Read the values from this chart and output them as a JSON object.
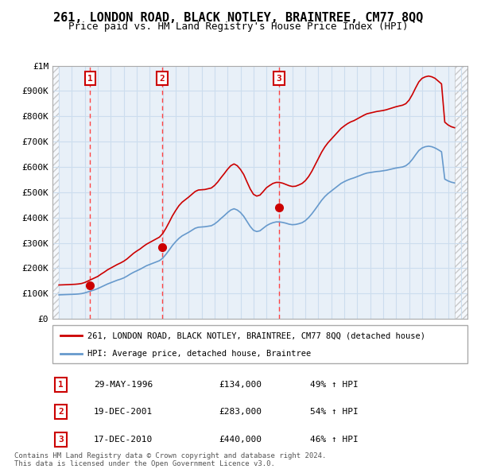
{
  "title": "261, LONDON ROAD, BLACK NOTLEY, BRAINTREE, CM77 8QQ",
  "subtitle": "Price paid vs. HM Land Registry's House Price Index (HPI)",
  "ylim": [
    0,
    1000000
  ],
  "yticks": [
    0,
    100000,
    200000,
    300000,
    400000,
    500000,
    600000,
    700000,
    800000,
    900000,
    1000000
  ],
  "ytick_labels": [
    "£0",
    "£100K",
    "£200K",
    "£300K",
    "£400K",
    "£500K",
    "£600K",
    "£700K",
    "£800K",
    "£900K",
    "£1M"
  ],
  "xlim_left": 1993.5,
  "xlim_right": 2025.5,
  "sales": [
    {
      "date": 1996.41,
      "price": 134000,
      "label": "1"
    },
    {
      "date": 2001.96,
      "price": 283000,
      "label": "2"
    },
    {
      "date": 2010.96,
      "price": 440000,
      "label": "3"
    }
  ],
  "sale_dashed_color": "#FF4444",
  "sale_line_color": "#CC0000",
  "hpi_line_color": "#6699CC",
  "hatch_color": "#BBBBBB",
  "grid_color": "#CCDDEE",
  "background_color": "#E8F0F8",
  "legend_entries": [
    "261, LONDON ROAD, BLACK NOTLEY, BRAINTREE, CM77 8QQ (detached house)",
    "HPI: Average price, detached house, Braintree"
  ],
  "table_rows": [
    {
      "num": "1",
      "date": "29-MAY-1996",
      "price": "£134,000",
      "hpi": "49% ↑ HPI"
    },
    {
      "num": "2",
      "date": "19-DEC-2001",
      "price": "£283,000",
      "hpi": "54% ↑ HPI"
    },
    {
      "num": "3",
      "date": "17-DEC-2010",
      "price": "£440,000",
      "hpi": "46% ↑ HPI"
    }
  ],
  "footer": "Contains HM Land Registry data © Crown copyright and database right 2024.\nThis data is licensed under the Open Government Licence v3.0.",
  "hpi_data_x": [
    1994.0,
    1994.25,
    1994.5,
    1994.75,
    1995.0,
    1995.25,
    1995.5,
    1995.75,
    1996.0,
    1996.25,
    1996.5,
    1996.75,
    1997.0,
    1997.25,
    1997.5,
    1997.75,
    1998.0,
    1998.25,
    1998.5,
    1998.75,
    1999.0,
    1999.25,
    1999.5,
    1999.75,
    2000.0,
    2000.25,
    2000.5,
    2000.75,
    2001.0,
    2001.25,
    2001.5,
    2001.75,
    2002.0,
    2002.25,
    2002.5,
    2002.75,
    2003.0,
    2003.25,
    2003.5,
    2003.75,
    2004.0,
    2004.25,
    2004.5,
    2004.75,
    2005.0,
    2005.25,
    2005.5,
    2005.75,
    2006.0,
    2006.25,
    2006.5,
    2006.75,
    2007.0,
    2007.25,
    2007.5,
    2007.75,
    2008.0,
    2008.25,
    2008.5,
    2008.75,
    2009.0,
    2009.25,
    2009.5,
    2009.75,
    2010.0,
    2010.25,
    2010.5,
    2010.75,
    2011.0,
    2011.25,
    2011.5,
    2011.75,
    2012.0,
    2012.25,
    2012.5,
    2012.75,
    2013.0,
    2013.25,
    2013.5,
    2013.75,
    2014.0,
    2014.25,
    2014.5,
    2014.75,
    2015.0,
    2015.25,
    2015.5,
    2015.75,
    2016.0,
    2016.25,
    2016.5,
    2016.75,
    2017.0,
    2017.25,
    2017.5,
    2017.75,
    2018.0,
    2018.25,
    2018.5,
    2018.75,
    2019.0,
    2019.25,
    2019.5,
    2019.75,
    2020.0,
    2020.25,
    2020.5,
    2020.75,
    2021.0,
    2021.25,
    2021.5,
    2021.75,
    2022.0,
    2022.25,
    2022.5,
    2022.75,
    2023.0,
    2023.25,
    2023.5,
    2023.75,
    2024.0,
    2024.25,
    2024.5
  ],
  "hpi_data_y": [
    95000,
    95500,
    96000,
    96500,
    97000,
    97500,
    98500,
    100000,
    103000,
    107000,
    111000,
    115000,
    120000,
    126000,
    132000,
    138000,
    143000,
    148000,
    153000,
    157000,
    162000,
    169000,
    177000,
    184000,
    190000,
    196000,
    203000,
    210000,
    215000,
    220000,
    225000,
    230000,
    240000,
    255000,
    272000,
    290000,
    305000,
    318000,
    328000,
    335000,
    342000,
    350000,
    358000,
    362000,
    363000,
    364000,
    366000,
    368000,
    375000,
    385000,
    397000,
    408000,
    420000,
    430000,
    435000,
    430000,
    420000,
    405000,
    385000,
    365000,
    350000,
    345000,
    348000,
    358000,
    368000,
    375000,
    380000,
    383000,
    383000,
    381000,
    378000,
    374000,
    372000,
    373000,
    376000,
    380000,
    388000,
    400000,
    415000,
    432000,
    450000,
    468000,
    483000,
    495000,
    505000,
    515000,
    525000,
    535000,
    542000,
    548000,
    553000,
    557000,
    562000,
    567000,
    572000,
    576000,
    578000,
    580000,
    582000,
    583000,
    585000,
    587000,
    590000,
    593000,
    596000,
    598000,
    600000,
    605000,
    615000,
    630000,
    648000,
    665000,
    675000,
    680000,
    682000,
    680000,
    675000,
    668000,
    660000,
    552000,
    545000,
    540000,
    537000
  ],
  "red_hpi_data_x": [
    1994.0,
    1994.25,
    1994.5,
    1994.75,
    1995.0,
    1995.25,
    1995.5,
    1995.75,
    1996.0,
    1996.25,
    1996.5,
    1996.75,
    1997.0,
    1997.25,
    1997.5,
    1997.75,
    1998.0,
    1998.25,
    1998.5,
    1998.75,
    1999.0,
    1999.25,
    1999.5,
    1999.75,
    2000.0,
    2000.25,
    2000.5,
    2000.75,
    2001.0,
    2001.25,
    2001.5,
    2001.75,
    2002.0,
    2002.25,
    2002.5,
    2002.75,
    2003.0,
    2003.25,
    2003.5,
    2003.75,
    2004.0,
    2004.25,
    2004.5,
    2004.75,
    2005.0,
    2005.25,
    2005.5,
    2005.75,
    2006.0,
    2006.25,
    2006.5,
    2006.75,
    2007.0,
    2007.25,
    2007.5,
    2007.75,
    2008.0,
    2008.25,
    2008.5,
    2008.75,
    2009.0,
    2009.25,
    2009.5,
    2009.75,
    2010.0,
    2010.25,
    2010.5,
    2010.75,
    2011.0,
    2011.25,
    2011.5,
    2011.75,
    2012.0,
    2012.25,
    2012.5,
    2012.75,
    2013.0,
    2013.25,
    2013.5,
    2013.75,
    2014.0,
    2014.25,
    2014.5,
    2014.75,
    2015.0,
    2015.25,
    2015.5,
    2015.75,
    2016.0,
    2016.25,
    2016.5,
    2016.75,
    2017.0,
    2017.25,
    2017.5,
    2017.75,
    2018.0,
    2018.25,
    2018.5,
    2018.75,
    2019.0,
    2019.25,
    2019.5,
    2019.75,
    2020.0,
    2020.25,
    2020.5,
    2020.75,
    2021.0,
    2021.25,
    2021.5,
    2021.75,
    2022.0,
    2022.25,
    2022.5,
    2022.75,
    2023.0,
    2023.25,
    2023.5,
    2023.75,
    2024.0,
    2024.25,
    2024.5
  ],
  "red_hpi_data_y": [
    134000,
    134500,
    135000,
    135500,
    136200,
    136800,
    138000,
    140000,
    144000,
    150000,
    156000,
    162000,
    168000,
    177000,
    185000,
    194000,
    201000,
    208000,
    215000,
    221000,
    228000,
    237000,
    248000,
    259000,
    268000,
    276000,
    286000,
    295000,
    302000,
    309000,
    316000,
    323000,
    337000,
    358000,
    382000,
    407000,
    428000,
    447000,
    461000,
    471000,
    481000,
    492000,
    503000,
    509000,
    510000,
    511000,
    514000,
    517000,
    527000,
    541000,
    558000,
    574000,
    591000,
    605000,
    612000,
    605000,
    590000,
    570000,
    541000,
    513000,
    492000,
    485000,
    489000,
    503000,
    518000,
    527000,
    535000,
    539000,
    539000,
    536000,
    531000,
    526000,
    523000,
    524000,
    529000,
    535000,
    546000,
    562000,
    583000,
    608000,
    633000,
    658000,
    679000,
    696000,
    710000,
    724000,
    738000,
    752000,
    762000,
    771000,
    778000,
    783000,
    790000,
    797000,
    804000,
    810000,
    813000,
    816000,
    819000,
    821000,
    823000,
    826000,
    830000,
    834000,
    838000,
    841000,
    844000,
    850000,
    864000,
    886000,
    912000,
    936000,
    950000,
    956000,
    959000,
    956000,
    950000,
    939000,
    928000,
    777000,
    766000,
    759000,
    755000
  ],
  "hatch_left_x": 1993.5,
  "hatch_right_x": 2025.5,
  "sale_dates": [
    1996.41,
    2001.96,
    2010.96
  ]
}
